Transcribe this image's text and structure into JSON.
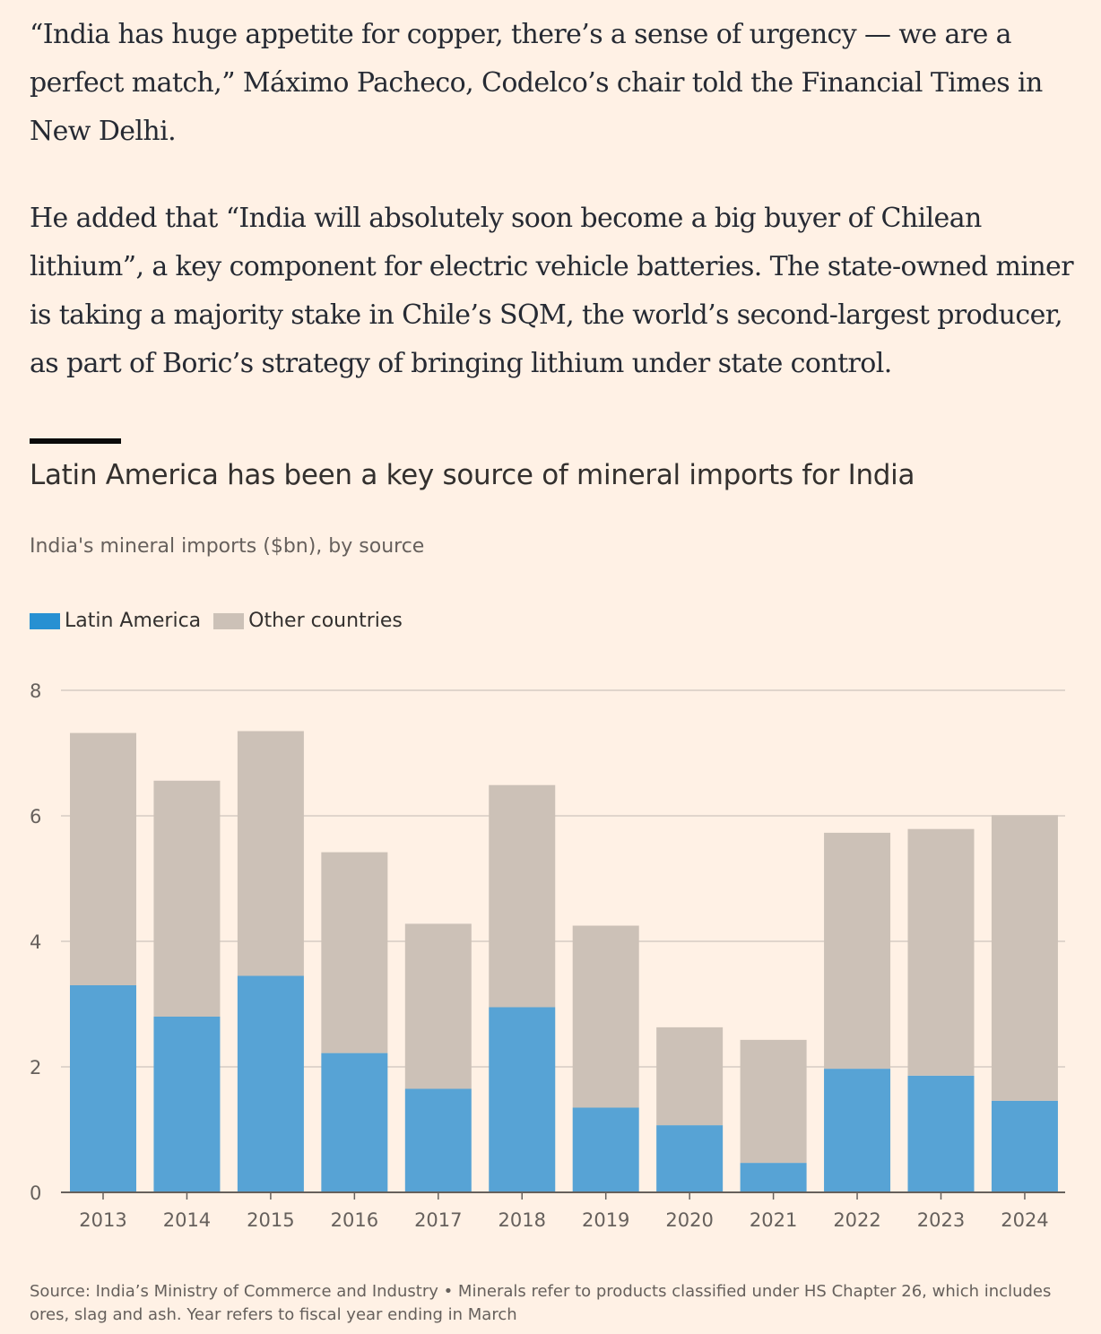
{
  "article": {
    "paragraphs": [
      "“India has huge appetite for copper, there’s a sense of urgency — we are a perfect match,” Máximo Pacheco, Codelco’s chair told the Financial Times in New Delhi.",
      "He added that “India will absolutely soon become a big buyer of Chilean lithium”, a key component for electric vehicle batteries. The state-owned miner is taking a majority stake in Chile’s SQM, the world’s second-largest producer, as part of Boric’s strategy of bringing lithium under state control."
    ]
  },
  "colors": {
    "background": "#FFF1E5",
    "latin_america": "#57A3D5",
    "other_countries": "#CCC1B7",
    "legend_latin_america": "#2790D2",
    "gridline": "#D6CCC3",
    "axis": "#66605C"
  },
  "legend": {
    "latin_america": "Latin America",
    "other_countries": "Other countries"
  },
  "chart_data": {
    "type": "bar",
    "stacked": true,
    "title": "Latin America has been a key source of mineral imports for India",
    "subtitle": "India's mineral imports ($bn), by source",
    "categories": [
      "2013",
      "2014",
      "2015",
      "2016",
      "2017",
      "2018",
      "2019",
      "2020",
      "2021",
      "2022",
      "2023",
      "2024"
    ],
    "series": [
      {
        "name": "Latin America",
        "values": [
          3.3,
          2.8,
          3.45,
          2.22,
          1.65,
          2.95,
          1.35,
          1.07,
          0.47,
          1.97,
          1.86,
          1.46
        ]
      },
      {
        "name": "Other countries",
        "values": [
          4.02,
          3.76,
          3.9,
          3.2,
          2.63,
          3.54,
          2.9,
          1.56,
          1.96,
          3.76,
          3.93,
          4.55
        ]
      }
    ],
    "ylim": [
      0,
      8
    ],
    "yticks": [
      "0",
      "2",
      "4",
      "6",
      "8"
    ],
    "xlabel": "",
    "ylabel": "",
    "grid": true,
    "legend_position": "top-left",
    "source": "Source: India’s Ministry of Commerce and Industry • Minerals refer to products classified under HS Chapter 26, which includes ores, slag and ash. Year refers to fiscal year ending in March"
  }
}
